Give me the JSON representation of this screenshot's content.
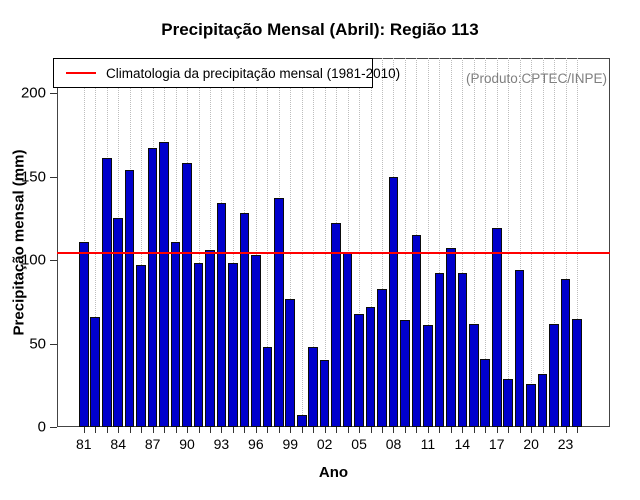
{
  "title": "Precipitação Mensal (Abril): Região 113",
  "legend": {
    "label": "Climatologia da precipitação mensal (1981-2010)",
    "line_color": "#ff0000"
  },
  "watermark": "(Produto:CPTEC/INPE)",
  "chart_data": {
    "type": "bar",
    "title": "Precipitação Mensal (Abril): Região 113",
    "xlabel": "Ano",
    "ylabel": "Precipitação mensal (mm)",
    "ylim": [
      0,
      221
    ],
    "yticks": [
      0,
      50,
      100,
      150,
      200
    ],
    "xtick_label_step": 3,
    "xtick_labels": [
      "81",
      "84",
      "87",
      "90",
      "93",
      "96",
      "99",
      "02",
      "05",
      "08",
      "11",
      "14",
      "17",
      "20",
      "23"
    ],
    "years": [
      1981,
      1982,
      1983,
      1984,
      1985,
      1986,
      1987,
      1988,
      1989,
      1990,
      1991,
      1992,
      1993,
      1994,
      1995,
      1996,
      1997,
      1998,
      1999,
      2000,
      2001,
      2002,
      2003,
      2004,
      2005,
      2006,
      2007,
      2008,
      2009,
      2010,
      2011,
      2012,
      2013,
      2014,
      2015,
      2016,
      2017,
      2018,
      2019,
      2020,
      2021,
      2022,
      2023,
      2024
    ],
    "values": [
      111,
      66,
      161,
      125,
      154,
      97,
      167,
      171,
      111,
      158,
      98,
      106,
      134,
      98,
      128,
      103,
      48,
      137,
      77,
      7,
      48,
      40,
      122,
      105,
      68,
      72,
      83,
      150,
      64,
      115,
      61,
      92,
      107,
      92,
      62,
      41,
      119,
      29,
      94,
      26,
      32,
      62,
      89,
      65
    ],
    "climatology_value": 104,
    "bar_color": "#0000cc",
    "bar_border_color": "#0b0b0b",
    "line_color": "#ff0000",
    "grid": "vertical-dotted",
    "legend_position": "top-left"
  }
}
